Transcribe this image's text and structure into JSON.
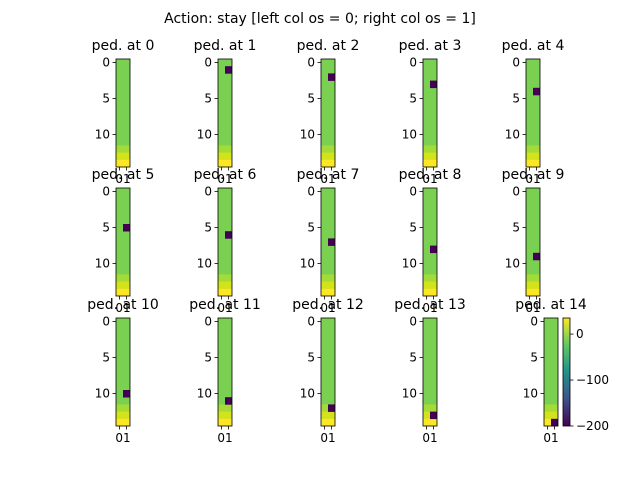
{
  "figure": {
    "suptitle": "Action: stay [left col os = 0; right col os = 1]"
  },
  "colors": {
    "green": "#7ad151",
    "yellow_bottom": "#fde725",
    "yellow_mid": "#d2e21b",
    "yellow_light": "#a5db36",
    "obstacle": "#440154",
    "colorbar_stops": [
      "#440154",
      "#3b528b",
      "#21918c",
      "#5ec962",
      "#fde725"
    ]
  },
  "chart_data": {
    "type": "heatmap",
    "grid_rows": 15,
    "grid_cols": 2,
    "yticks": [
      0,
      5,
      10
    ],
    "xtick_label": "01",
    "bottom_gradient_rows": [
      {
        "row": 12,
        "color_key": "yellow_light"
      },
      {
        "row": 13,
        "color_key": "yellow_mid"
      },
      {
        "row": 14,
        "color_key": "yellow_bottom"
      }
    ],
    "panels": [
      {
        "title": "ped. at 0",
        "ped_row": null,
        "ped_col": 1
      },
      {
        "title": "ped. at 1",
        "ped_row": 1,
        "ped_col": 1
      },
      {
        "title": "ped. at 2",
        "ped_row": 2,
        "ped_col": 1
      },
      {
        "title": "ped. at 3",
        "ped_row": 3,
        "ped_col": 1
      },
      {
        "title": "ped. at 4",
        "ped_row": 4,
        "ped_col": 1
      },
      {
        "title": "ped. at 5",
        "ped_row": 5,
        "ped_col": 1
      },
      {
        "title": "ped. at 6",
        "ped_row": 6,
        "ped_col": 1
      },
      {
        "title": "ped. at 7",
        "ped_row": 7,
        "ped_col": 1
      },
      {
        "title": "ped. at 8",
        "ped_row": 8,
        "ped_col": 1
      },
      {
        "title": "ped. at 9",
        "ped_row": 9,
        "ped_col": 1
      },
      {
        "title": "ped. at 10",
        "ped_row": 10,
        "ped_col": 1
      },
      {
        "title": "ped. at 11",
        "ped_row": 11,
        "ped_col": 1
      },
      {
        "title": "ped. at 12",
        "ped_row": 12,
        "ped_col": 1
      },
      {
        "title": "ped. at 13",
        "ped_row": 13,
        "ped_col": 1
      },
      {
        "title": "ped. at 14",
        "ped_row": 14,
        "ped_col": 1
      }
    ],
    "colorbar": {
      "vmin": -200,
      "vmax": 35,
      "ticks": [
        0,
        -100,
        -200
      ],
      "tick_labels": [
        "0",
        "−100",
        "−200"
      ]
    }
  }
}
